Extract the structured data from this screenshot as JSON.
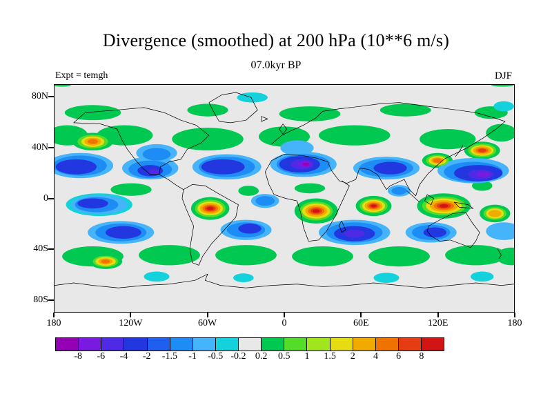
{
  "header": {
    "title": "Divergence (smoothed) at 200 hPa (10**6 m/s)",
    "subtitle": "07.0kyr BP",
    "expt_label": "Expt = temgh",
    "season_label": "DJF"
  },
  "axes": {
    "lat_ticks": [
      {
        "label": "80N",
        "value": 80
      },
      {
        "label": "40N",
        "value": 40
      },
      {
        "label": "0",
        "value": 0
      },
      {
        "label": "40S",
        "value": -40
      },
      {
        "label": "80S",
        "value": -80
      }
    ],
    "lon_ticks": [
      {
        "label": "180",
        "value": -180
      },
      {
        "label": "120W",
        "value": -120
      },
      {
        "label": "60W",
        "value": -60
      },
      {
        "label": "0",
        "value": 0
      },
      {
        "label": "60E",
        "value": 60
      },
      {
        "label": "120E",
        "value": 120
      },
      {
        "label": "180",
        "value": 180
      }
    ]
  },
  "colorbar": {
    "tick_labels": [
      "-8",
      "-6",
      "-4",
      "-2",
      "-1.5",
      "-1",
      "-0.5",
      "-0.2",
      "0.2",
      "0.5",
      "1",
      "1.5",
      "2",
      "4",
      "6",
      "8"
    ]
  },
  "chart_data": {
    "type": "heatmap",
    "title": "Divergence (smoothed) at 200 hPa (10**6 m/s)",
    "subtitle": "07.0kyr BP",
    "experiment": "temgh",
    "season": "DJF",
    "units": "10**6 m/s",
    "projection": "equirectangular world map, lon -180..180, lat -90..90",
    "contour_levels": [
      -8,
      -6,
      -4,
      -2,
      -1.5,
      -1,
      -0.5,
      -0.2,
      0.2,
      0.5,
      1,
      1.5,
      2,
      4,
      6,
      8
    ],
    "palette": [
      "#9600b4",
      "#7a1ae1",
      "#4f2ae6",
      "#2337e1",
      "#1e5ff0",
      "#1e8cf5",
      "#46b4fa",
      "#14d2dc",
      "#e8e8e8",
      "#00c850",
      "#55dc28",
      "#a0e61e",
      "#e6dc14",
      "#f0aa00",
      "#f07300",
      "#e63c14",
      "#d21414"
    ],
    "background_index": 8,
    "field_blobs": {
      "format": "[lon, lat, rx_deg, ry_deg, palette_index]",
      "items": [
        [
          -150,
          68,
          22,
          6,
          9
        ],
        [
          -60,
          70,
          16,
          5,
          9
        ],
        [
          20,
          67,
          24,
          6,
          9
        ],
        [
          95,
          70,
          20,
          5,
          9
        ],
        [
          162,
          68,
          13,
          5,
          9
        ],
        [
          -170,
          50,
          16,
          8,
          9
        ],
        [
          -125,
          50,
          22,
          8,
          9
        ],
        [
          -60,
          47,
          28,
          9,
          9
        ],
        [
          0,
          49,
          20,
          8,
          9
        ],
        [
          55,
          50,
          28,
          8,
          9
        ],
        [
          128,
          47,
          22,
          8,
          9
        ],
        [
          170,
          52,
          12,
          7,
          9
        ],
        [
          -120,
          7,
          16,
          5,
          9
        ],
        [
          -28,
          6,
          8,
          4,
          9
        ],
        [
          20,
          8,
          12,
          4,
          9
        ],
        [
          155,
          10,
          8,
          4,
          9
        ],
        [
          -150,
          -46,
          24,
          8,
          9
        ],
        [
          -90,
          -45,
          24,
          8,
          9
        ],
        [
          -30,
          -45,
          24,
          8,
          9
        ],
        [
          30,
          -46,
          24,
          8,
          9
        ],
        [
          90,
          -46,
          24,
          8,
          9
        ],
        [
          150,
          -45,
          24,
          8,
          9
        ],
        [
          178,
          -46,
          12,
          7,
          9
        ],
        [
          -58,
          -8,
          15,
          9,
          9
        ],
        [
          25,
          -10,
          17,
          10,
          9
        ],
        [
          70,
          -6,
          14,
          8,
          9
        ],
        [
          125,
          -6,
          21,
          10,
          9
        ],
        [
          165,
          -12,
          12,
          7,
          9
        ],
        [
          -150,
          45,
          16,
          7,
          9
        ],
        [
          155,
          38,
          14,
          7,
          9
        ],
        [
          120,
          30,
          12,
          6,
          9
        ],
        [
          -140,
          -50,
          13,
          6,
          9
        ],
        [
          -174,
          90,
          7,
          1.4,
          9
        ],
        [
          171,
          90,
          9,
          1.4,
          9
        ],
        [
          -25,
          80,
          12,
          4,
          7
        ],
        [
          172,
          73,
          8,
          4,
          7
        ],
        [
          -100,
          -62,
          10,
          4,
          7
        ],
        [
          -32,
          -63,
          8,
          3.5,
          7
        ],
        [
          80,
          -63,
          10,
          4,
          7
        ],
        [
          155,
          -62,
          9,
          4,
          7
        ],
        [
          -145,
          -5,
          26,
          9,
          7
        ],
        [
          -160,
          26,
          26,
          10,
          6
        ],
        [
          -105,
          24,
          22,
          9,
          6
        ],
        [
          -45,
          25,
          27,
          10,
          6
        ],
        [
          15,
          27,
          26,
          10,
          6
        ],
        [
          80,
          24,
          26,
          9,
          6
        ],
        [
          148,
          22,
          28,
          10,
          6
        ],
        [
          -100,
          36,
          16,
          7,
          6
        ],
        [
          10,
          40,
          13,
          6,
          6
        ],
        [
          -145,
          -5,
          22,
          7.5,
          6
        ],
        [
          -15,
          -2,
          11,
          5.5,
          6
        ],
        [
          90,
          6,
          9,
          4.5,
          6
        ],
        [
          -128,
          -27,
          26,
          9,
          6
        ],
        [
          -30,
          -25,
          20,
          8,
          6
        ],
        [
          55,
          -27,
          28,
          10,
          6
        ],
        [
          115,
          -27,
          20,
          8,
          6
        ],
        [
          172,
          -26,
          14,
          7,
          6
        ],
        [
          -160,
          26,
          21,
          8,
          5
        ],
        [
          -105,
          23,
          17,
          7,
          5
        ],
        [
          -45,
          25,
          22,
          8,
          5
        ],
        [
          15,
          27,
          21,
          8,
          5
        ],
        [
          80,
          24,
          21,
          7,
          5
        ],
        [
          148,
          21,
          23,
          8,
          5
        ],
        [
          -100,
          35,
          11,
          5,
          5
        ],
        [
          -147,
          -5,
          17,
          6,
          5
        ],
        [
          -15,
          -2,
          7.5,
          3.8,
          5
        ],
        [
          90,
          6,
          6,
          3,
          5
        ],
        [
          -128,
          -27,
          20,
          7,
          5
        ],
        [
          -30,
          -25,
          15,
          6,
          5
        ],
        [
          55,
          -27,
          22,
          8,
          5
        ],
        [
          115,
          -27,
          15,
          6,
          5
        ],
        [
          -163,
          25,
          16,
          6,
          3
        ],
        [
          -48,
          25,
          17,
          6,
          3
        ],
        [
          12,
          27,
          16,
          6.5,
          3
        ],
        [
          83,
          24,
          13,
          5,
          3
        ],
        [
          152,
          20,
          19,
          6.5,
          3
        ],
        [
          -105,
          22,
          10,
          4.5,
          3
        ],
        [
          -150,
          -4,
          12,
          4,
          3
        ],
        [
          -126,
          -27,
          14,
          5,
          3
        ],
        [
          55,
          -28,
          16,
          6,
          3
        ],
        [
          -27,
          -24,
          9,
          4,
          3
        ],
        [
          118,
          -27,
          9,
          4,
          3
        ],
        [
          14,
          27,
          9,
          4,
          2
        ],
        [
          154,
          19,
          10,
          3.8,
          2
        ],
        [
          -102,
          21,
          4.5,
          2.6,
          2
        ],
        [
          55,
          -28,
          8,
          3.2,
          2
        ],
        [
          16,
          27,
          5,
          2.4,
          1
        ],
        [
          156,
          19,
          5,
          2.2,
          1
        ],
        [
          17,
          27,
          2.6,
          1.4,
          0
        ],
        [
          -58,
          -8,
          12,
          7,
          10
        ],
        [
          25,
          -10,
          13,
          7.5,
          10
        ],
        [
          70,
          -6,
          11,
          6,
          10
        ],
        [
          125,
          -6,
          17,
          7.5,
          10
        ],
        [
          165,
          -12,
          9,
          5,
          10
        ],
        [
          -150,
          45,
          12,
          5.5,
          10
        ],
        [
          155,
          38,
          11,
          5.5,
          10
        ],
        [
          120,
          30,
          9,
          4.5,
          10
        ],
        [
          -140,
          -50,
          10,
          4.5,
          10
        ],
        [
          -58,
          -8,
          10,
          5.5,
          12
        ],
        [
          25,
          -10,
          11,
          6,
          12
        ],
        [
          70,
          -6,
          9,
          4.8,
          12
        ],
        [
          125,
          -6,
          14,
          6,
          12
        ],
        [
          165,
          -12,
          7,
          4,
          12
        ],
        [
          -150,
          45,
          9,
          4.2,
          12
        ],
        [
          155,
          38,
          9,
          4.2,
          12
        ],
        [
          120,
          30,
          7,
          3.5,
          12
        ],
        [
          -140,
          -50,
          8,
          3.5,
          12
        ],
        [
          -58,
          -8,
          8,
          4.2,
          13
        ],
        [
          25,
          -10,
          8.5,
          4.5,
          13
        ],
        [
          70,
          -6,
          7,
          3.6,
          13
        ],
        [
          125,
          -6,
          11,
          4.5,
          13
        ],
        [
          165,
          -12,
          5,
          2.8,
          13
        ],
        [
          -150,
          45,
          6.5,
          3,
          13
        ],
        [
          155,
          38,
          7,
          3.2,
          13
        ],
        [
          120,
          30,
          5,
          2.5,
          13
        ],
        [
          -140,
          -50,
          5.5,
          2.4,
          13
        ],
        [
          -58,
          -8,
          6,
          3,
          14
        ],
        [
          25,
          -10,
          6.5,
          3.2,
          14
        ],
        [
          70,
          -6,
          5,
          2.6,
          14
        ],
        [
          125,
          -6,
          8,
          3.2,
          14
        ],
        [
          -150,
          45,
          4,
          2,
          14
        ],
        [
          155,
          38,
          5,
          2.2,
          14
        ],
        [
          120,
          30,
          3.5,
          1.8,
          14
        ],
        [
          -140,
          -50,
          3.5,
          1.6,
          14
        ],
        [
          -58,
          -8,
          4.2,
          2.1,
          15
        ],
        [
          25,
          -10,
          4.5,
          2.2,
          15
        ],
        [
          70,
          -6,
          3.4,
          1.8,
          15
        ],
        [
          125,
          -6,
          5.5,
          2.2,
          15
        ],
        [
          155,
          38,
          3.2,
          1.5,
          15
        ],
        [
          -58,
          -8,
          2.6,
          1.3,
          16
        ],
        [
          25,
          -10,
          2.8,
          1.4,
          16
        ],
        [
          70,
          -6,
          2,
          1.1,
          16
        ],
        [
          125,
          -6,
          3.4,
          1.4,
          16
        ]
      ]
    }
  }
}
